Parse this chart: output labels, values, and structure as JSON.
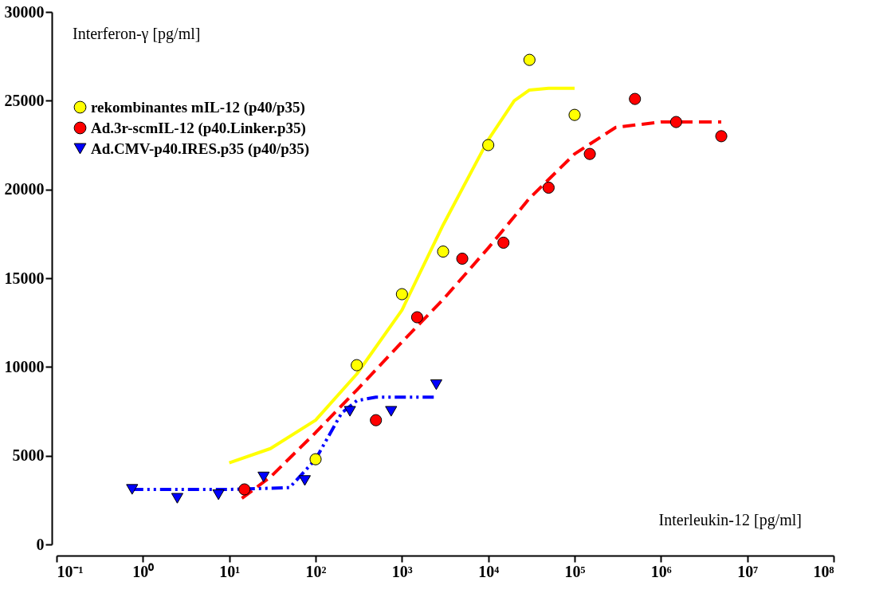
{
  "chart_data": {
    "type": "scatter",
    "xlabel": "Interleukin-12 [pg/ml]",
    "ylabel": "Interferon-γ [pg/ml]",
    "log": "x",
    "xlim": [
      0.1,
      100000000
    ],
    "ylim": [
      0,
      30000
    ],
    "xticks": [
      {
        "value": 0.1,
        "label": "10⁻¹"
      },
      {
        "value": 1,
        "label": "10⁰"
      },
      {
        "value": 10,
        "label": "10¹"
      },
      {
        "value": 100,
        "label": "10²"
      },
      {
        "value": 1000,
        "label": "10³"
      },
      {
        "value": 10000,
        "label": "10⁴"
      },
      {
        "value": 100000,
        "label": "10⁵"
      },
      {
        "value": 1000000,
        "label": "10⁶"
      },
      {
        "value": 10000000,
        "label": "10⁷"
      },
      {
        "value": 100000000,
        "label": "10⁸"
      }
    ],
    "yticks": [
      0,
      5000,
      10000,
      15000,
      20000,
      25000,
      30000
    ],
    "grid": false,
    "legend": "top left",
    "series": [
      {
        "name": "rekombinantes mIL-12 (p40/p35)",
        "color": "#ffff00",
        "marker": "circle",
        "x": [
          100,
          300,
          1000,
          3000,
          10000,
          30000,
          100000
        ],
        "values": [
          4800,
          10100,
          14100,
          16500,
          22500,
          27300,
          24200
        ]
      },
      {
        "name": "Ad.3r-scmIL-12 (p40.Linker.p35)",
        "color": "#ff0000",
        "marker": "circle",
        "x": [
          15,
          500,
          1500,
          5000,
          15000,
          50000,
          150000,
          500000,
          1500000,
          5000000
        ],
        "values": [
          3100,
          7000,
          12800,
          16100,
          17000,
          20100,
          22000,
          25100,
          23800,
          23000
        ]
      },
      {
        "name": "Ad.CMV-p40.IRES.p35 (p40/p35)",
        "color": "#0000ff",
        "marker": "triangle",
        "x": [
          0.75,
          2.5,
          7.5,
          25,
          75,
          250,
          750,
          2500
        ],
        "values": [
          3100,
          2600,
          2800,
          3800,
          3600,
          7500,
          7500,
          9000
        ]
      },
      {
        "type": "line",
        "color": "#ffff00",
        "line_style": "solid",
        "x": [
          10,
          30,
          100,
          300,
          1000,
          3000,
          10000,
          20000,
          30000,
          50000,
          100000
        ],
        "values": [
          4600,
          5400,
          7000,
          9600,
          13200,
          18000,
          22800,
          25000,
          25600,
          25700,
          25700
        ]
      },
      {
        "type": "line",
        "color": "#ff0000",
        "line_style": "dashed",
        "x": [
          14,
          30,
          100,
          300,
          1000,
          3000,
          10000,
          30000,
          100000,
          300000,
          1000000,
          5000000
        ],
        "values": [
          2600,
          3800,
          6300,
          8700,
          11400,
          13800,
          16700,
          19500,
          22000,
          23500,
          23800,
          23800
        ]
      },
      {
        "type": "line",
        "color": "#0000ff",
        "line_style": "dashdot",
        "x": [
          0.75,
          10,
          50,
          100,
          200,
          300,
          500,
          2500
        ],
        "values": [
          3100,
          3100,
          3200,
          4800,
          7400,
          8100,
          8300,
          8300
        ]
      }
    ]
  }
}
